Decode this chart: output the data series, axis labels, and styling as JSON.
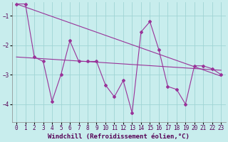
{
  "xlabel": "Windchill (Refroidissement éolien,°C)",
  "background_color": "#c8eded",
  "grid_color": "#a0d4d4",
  "line_color": "#993399",
  "xlim": [
    -0.5,
    23.5
  ],
  "ylim": [
    -4.6,
    -0.55
  ],
  "xticks": [
    0,
    1,
    2,
    3,
    4,
    5,
    6,
    7,
    8,
    9,
    10,
    11,
    12,
    13,
    14,
    15,
    16,
    17,
    18,
    19,
    20,
    21,
    22,
    23
  ],
  "yticks": [
    -4,
    -3,
    -2,
    -1
  ],
  "line1_y": [
    -0.6,
    -0.6,
    -2.4,
    -2.55,
    -3.9,
    -3.0,
    -1.85,
    -2.55,
    -2.55,
    -2.55,
    -3.35,
    -3.75,
    -3.2,
    -4.3,
    -1.55,
    -1.2,
    -2.15,
    -3.4,
    -3.5,
    -4.0,
    -2.7,
    -2.7,
    -2.8,
    -3.0
  ],
  "line2_y": [
    -0.6,
    -3.05
  ],
  "line3_y": [
    -2.4,
    -2.85
  ],
  "tick_fontsize": 5.5,
  "label_fontsize": 6.5,
  "linewidth": 0.8,
  "markersize": 2.0
}
